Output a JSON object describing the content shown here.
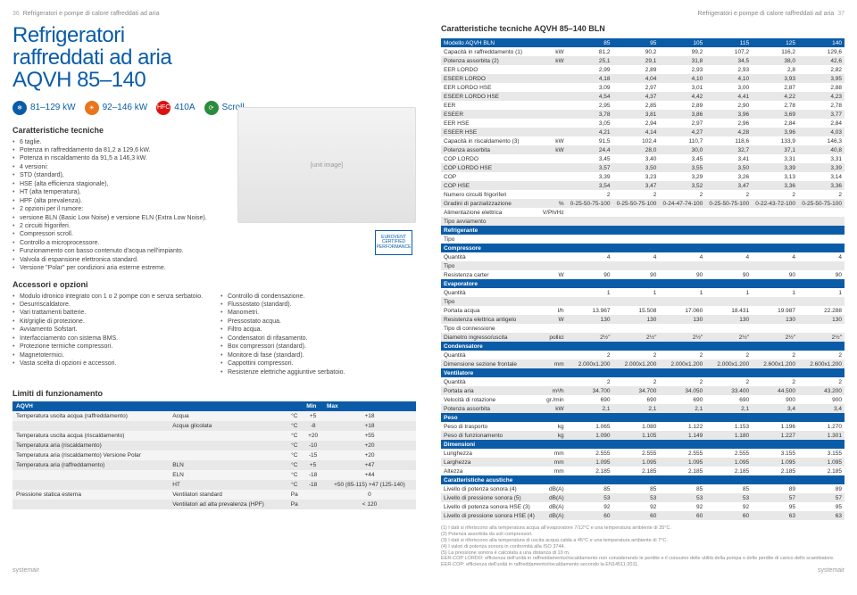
{
  "header": {
    "left_text": "Refrigeratori e pompe di calore raffreddati ad aria",
    "left_pn": "36",
    "right_text": "Refrigeratori e pompe di calore raffreddati ad aria",
    "right_pn": "37"
  },
  "title": {
    "l1": "Refrigeratori",
    "l2": "raffreddati ad aria",
    "l3": "AQVH 85–140"
  },
  "badges": {
    "cooling": "81–129 kW",
    "heating": "92–146 kW",
    "refrig": "410A",
    "comp": "Scroll"
  },
  "caratteristiche_h": "Caratteristiche tecniche",
  "caratteristiche": [
    "6 taglie.",
    "Potenza in raffreddamento da 81,2 a 129,6 kW.",
    "Potenza in riscaldamento da 91,5 a 146,3 kW.",
    "4 versioni:",
    "STD (standard),",
    "HSE (alta efficienza stagionale),",
    "HT (alta temperatura),",
    "HPF (alta prevalenza).",
    "2 opzioni per il rumore:",
    "versione BLN (Basic Low Noise) e versione ELN (Extra Low Noise).",
    "2 circuiti frigoriferi.",
    "Compressori scroll.",
    "Controllo a microprocessore.",
    "Funzionamento con basso contenuto d'acqua nell'impianto.",
    "Valvola di espansione elettronica standard.",
    "Versione \"Polar\" per condizioni aria esterne estreme."
  ],
  "accessori_h": "Accessori e opzioni",
  "accessori_col1": [
    "Modulo idronico integrato con 1 o 2 pompe con e senza serbatoio.",
    "Desurriscaldatore.",
    "Vari trattamenti batterie.",
    "Kit/griglie di protezione.",
    "Avviamento Sofstart.",
    "Interfacciamento con sistema BMS.",
    "Protezione termiche compressori.",
    "Magnetotermici.",
    "Vasta scelta di opzioni e accessori."
  ],
  "accessori_col2": [
    "Controllo di condensazione.",
    "Flussostato (standard).",
    "Manometri.",
    "Pressostato acqua.",
    "Filtro acqua.",
    "Condensatori di rifasamento.",
    "Box compressori (standard).",
    "Monitore di fase (standard).",
    "Cappottini compressori.",
    "Resistenze elettriche aggiuntive serbatoio."
  ],
  "limiti_h": "Limiti di funzionamento",
  "limit_table": {
    "head": [
      "AQVH",
      "",
      "",
      "Min",
      "Max"
    ],
    "rows": [
      [
        "Temperatura uscita acqua (raffreddamento)",
        "Acqua",
        "°C",
        "+5",
        "+18"
      ],
      [
        "",
        "Acqua glicolata",
        "°C",
        "-8",
        "+18"
      ],
      [
        "Temperatura uscita acqua (riscaldamento)",
        "",
        "°C",
        "+20",
        "+55"
      ],
      [
        "Temperatura aria (riscaldamento)",
        "",
        "°C",
        "-10",
        "+20"
      ],
      [
        "Temperatura aria (riscaldamento) Versione Polar",
        "",
        "°C",
        "-15",
        "+20"
      ],
      [
        "Temperatura aria (raffreddamento)",
        "BLN",
        "°C",
        "+5",
        "+47"
      ],
      [
        "",
        "ELN",
        "°C",
        "-18",
        "+44"
      ],
      [
        "",
        "HT",
        "°C",
        "-18",
        "+50 (85-115)\n+47 (125-140)"
      ],
      [
        "Pressione statica esterna",
        "Ventilatori standard",
        "Pa",
        "",
        "0"
      ],
      [
        "",
        "Ventilatori ad alta prevalenza (HPF)",
        "Pa",
        "",
        "< 120"
      ]
    ]
  },
  "right_heading": "Caratteristiche tecniche AQVH 85–140 BLN",
  "spec": {
    "models": [
      "85",
      "95",
      "105",
      "115",
      "125",
      "140"
    ],
    "model_label": "Modello AQVH BLN",
    "rows": [
      {
        "l": "Capacità in raffreddamento (1)",
        "u": "kW",
        "v": [
          "81,2",
          "90,2",
          "99,2",
          "107,2",
          "116,2",
          "129,6"
        ],
        "g": 0
      },
      {
        "l": "Potenza assorbita (2)",
        "u": "kW",
        "v": [
          "25,1",
          "29,1",
          "31,8",
          "34,5",
          "38,0",
          "42,6"
        ],
        "g": 1
      },
      {
        "l": "EER LORDO",
        "u": "",
        "v": [
          "2,99",
          "2,89",
          "2,93",
          "2,93",
          "2,8",
          "2,82"
        ],
        "g": 0
      },
      {
        "l": "ESEER LORDO",
        "u": "",
        "v": [
          "4,18",
          "4,04",
          "4,10",
          "4,10",
          "3,93",
          "3,95"
        ],
        "g": 1
      },
      {
        "l": "EER LORDO HSE",
        "u": "",
        "v": [
          "3,09",
          "2,97",
          "3,01",
          "3,00",
          "2,87",
          "2,88"
        ],
        "g": 0
      },
      {
        "l": "ESEER LORDO HSE",
        "u": "",
        "v": [
          "4,54",
          "4,37",
          "4,42",
          "4,41",
          "4,22",
          "4,23"
        ],
        "g": 1
      },
      {
        "l": "EER",
        "u": "",
        "v": [
          "2,95",
          "2,85",
          "2,89",
          "2,90",
          "2,78",
          "2,78"
        ],
        "g": 0
      },
      {
        "l": "ESEER",
        "u": "",
        "v": [
          "3,78",
          "3,81",
          "3,86",
          "3,96",
          "3,69",
          "3,77"
        ],
        "g": 1
      },
      {
        "l": "EER HSE",
        "u": "",
        "v": [
          "3,05",
          "2,94",
          "2,97",
          "2,96",
          "2,84",
          "2,84"
        ],
        "g": 0
      },
      {
        "l": "ESEER HSE",
        "u": "",
        "v": [
          "4,21",
          "4,14",
          "4,27",
          "4,28",
          "3,96",
          "4,03"
        ],
        "g": 1
      },
      {
        "l": "Capacità in riscaldamento (3)",
        "u": "kW",
        "v": [
          "91,5",
          "102,4",
          "110,7",
          "118,6",
          "133,9",
          "146,3"
        ],
        "g": 0
      },
      {
        "l": "Potenza assorbita",
        "u": "kW",
        "v": [
          "24,4",
          "28,0",
          "30,0",
          "32,7",
          "37,1",
          "40,8"
        ],
        "g": 1
      },
      {
        "l": "COP LORDO",
        "u": "",
        "v": [
          "3,45",
          "3,40",
          "3,45",
          "3,41",
          "3,31",
          "3,31"
        ],
        "g": 0
      },
      {
        "l": "COP LORDO HSE",
        "u": "",
        "v": [
          "3,57",
          "3,50",
          "3,55",
          "3,50",
          "3,39",
          "3,39"
        ],
        "g": 1
      },
      {
        "l": "COP",
        "u": "",
        "v": [
          "3,39",
          "3,23",
          "3,29",
          "3,26",
          "3,13",
          "3,14"
        ],
        "g": 0
      },
      {
        "l": "COP HSE",
        "u": "",
        "v": [
          "3,54",
          "3,47",
          "3,52",
          "3,47",
          "3,36",
          "3,36"
        ],
        "g": 1
      },
      {
        "l": "Numero circuiti frigoriferi",
        "u": "",
        "v": [
          "2",
          "2",
          "2",
          "2",
          "2",
          "2"
        ],
        "g": 0
      },
      {
        "l": "Gradini di parzializzazione",
        "u": "%",
        "v": [
          "0-25-50-75-100",
          "0-25-50-75-100",
          "0-24-47-74-100",
          "0-25-50-75-100",
          "0-22-43-72-100",
          "0-25-50-75-100"
        ],
        "g": 1
      },
      {
        "l": "Alimentazione elettrica",
        "u": "V/Ph/Hz",
        "v": [
          "",
          "",
          "400/3/50",
          "",
          "",
          ""
        ],
        "span": 6,
        "g": 0
      },
      {
        "l": "Tipo avviamento",
        "u": "",
        "v": [
          "",
          "",
          "Diretto",
          "",
          "",
          ""
        ],
        "span": 6,
        "g": 1
      }
    ],
    "sections": [
      {
        "h": "Refrigerante",
        "rows": [
          {
            "l": "Tipo",
            "u": "",
            "v": [
              "",
              "",
              "HFC 410A",
              "",
              "",
              ""
            ],
            "span": 6,
            "g": 0
          }
        ]
      },
      {
        "h": "Compressore",
        "rows": [
          {
            "l": "Quantità",
            "u": "",
            "v": [
              "4",
              "4",
              "4",
              "4",
              "4",
              "4"
            ],
            "g": 0
          },
          {
            "l": "Tipo",
            "u": "",
            "v": [
              "",
              "",
              "Scroll",
              "",
              "",
              ""
            ],
            "span": 6,
            "g": 1
          },
          {
            "l": "Resistenza carter",
            "u": "W",
            "v": [
              "90",
              "90",
              "90",
              "90",
              "90",
              "90"
            ],
            "g": 0
          }
        ]
      },
      {
        "h": "Evaporatore",
        "rows": [
          {
            "l": "Quantità",
            "u": "",
            "v": [
              "1",
              "1",
              "1",
              "1",
              "1",
              "1"
            ],
            "g": 0
          },
          {
            "l": "Tipo",
            "u": "",
            "v": [
              "",
              "",
              "A piastre AISI 316",
              "",
              "",
              ""
            ],
            "span": 6,
            "g": 1
          },
          {
            "l": "Portata acqua",
            "u": "l/h",
            "v": [
              "13.967",
              "15.508",
              "17.060",
              "18.431",
              "19.987",
              "22.288"
            ],
            "g": 0
          },
          {
            "l": "Resistenza elettrica antigelo",
            "u": "W",
            "v": [
              "130",
              "130",
              "130",
              "130",
              "130",
              "130"
            ],
            "g": 1
          },
          {
            "l": "Tipo di connessione",
            "u": "",
            "v": [
              "",
              "",
              "Filettato maschio",
              "",
              "",
              ""
            ],
            "span": 6,
            "g": 0
          },
          {
            "l": "Diametro ingresso/uscita",
            "u": "pollici",
            "v": [
              "2½\"",
              "2½\"",
              "2½\"",
              "2½\"",
              "2½\"",
              "2½\""
            ],
            "g": 1
          }
        ]
      },
      {
        "h": "Condensatore",
        "rows": [
          {
            "l": "Quantità",
            "u": "",
            "v": [
              "2",
              "2",
              "2",
              "2",
              "2",
              "2"
            ],
            "g": 0
          },
          {
            "l": "Dimensione sezione frontale",
            "u": "mm",
            "v": [
              "2.000x1.200",
              "2.000x1.200",
              "2.000x1.200",
              "2.000x1.200",
              "2.600x1.200",
              "2.600x1.200"
            ],
            "g": 1
          }
        ]
      },
      {
        "h": "Ventilatore",
        "rows": [
          {
            "l": "Quantità",
            "u": "",
            "v": [
              "2",
              "2",
              "2",
              "2",
              "2",
              "2"
            ],
            "g": 0
          },
          {
            "l": "Portata aria",
            "u": "m³/h",
            "v": [
              "34.700",
              "34.700",
              "34.050",
              "33.400",
              "44.500",
              "43.200"
            ],
            "g": 1
          },
          {
            "l": "Velocità di rotazione",
            "u": "gr./min",
            "v": [
              "690",
              "690",
              "690",
              "690",
              "900",
              "900"
            ],
            "g": 0
          },
          {
            "l": "Potenza assorbita",
            "u": "kW",
            "v": [
              "2,1",
              "2,1",
              "2,1",
              "2,1",
              "3,4",
              "3,4"
            ],
            "g": 1
          }
        ]
      },
      {
        "h": "Peso",
        "rows": [
          {
            "l": "Peso di trasporto",
            "u": "kg",
            "v": [
              "1.065",
              "1.080",
              "1.122",
              "1.153",
              "1.196",
              "1.270"
            ],
            "g": 0
          },
          {
            "l": "Peso di funzionamento",
            "u": "kg",
            "v": [
              "1.090",
              "1.105",
              "1.149",
              "1.180",
              "1.227",
              "1.301"
            ],
            "g": 1
          }
        ]
      },
      {
        "h": "Dimensioni",
        "rows": [
          {
            "l": "Lunghezza",
            "u": "mm",
            "v": [
              "2.555",
              "2.555",
              "2.555",
              "2.555",
              "3.155",
              "3.155"
            ],
            "g": 0
          },
          {
            "l": "Larghezza",
            "u": "mm",
            "v": [
              "1.095",
              "1.095",
              "1.095",
              "1.095",
              "1.095",
              "1.095"
            ],
            "g": 1
          },
          {
            "l": "Altezza",
            "u": "mm",
            "v": [
              "2.185",
              "2.185",
              "2.185",
              "2.185",
              "2.185",
              "2.185"
            ],
            "g": 0
          }
        ]
      },
      {
        "h": "Caratteristiche acustiche",
        "rows": [
          {
            "l": "Livello di potenza sonora (4)",
            "u": "dB(A)",
            "v": [
              "85",
              "85",
              "85",
              "85",
              "89",
              "89"
            ],
            "g": 0
          },
          {
            "l": "Livello di pressione sonora (5)",
            "u": "dB(A)",
            "v": [
              "53",
              "53",
              "53",
              "53",
              "57",
              "57"
            ],
            "g": 1
          },
          {
            "l": "Livello di potenza sonora HSE (3)",
            "u": "dB(A)",
            "v": [
              "92",
              "92",
              "92",
              "92",
              "95",
              "95"
            ],
            "g": 0
          },
          {
            "l": "Livello di pressione sonora HSE (4)",
            "u": "dB(A)",
            "v": [
              "60",
              "60",
              "60",
              "60",
              "63",
              "63"
            ],
            "g": 1
          }
        ]
      }
    ]
  },
  "footnotes": [
    "(1) I dati si riferiscono alla temperatura acqua all'evaporatore 7/12°C e una temperatura ambiente di 35°C.",
    "(2) Potenza assorbita da soli compressori.",
    "(3) I dati si riferiscono alla temperatura di uscita acqua calda a 45°C e una temperatura ambiente di 7°C.",
    "(4) I valori di potenza sonora in conformità alla ISO 3744.",
    "(5) La pressione sonora è calcolata a una distanza di 10 m.",
    "EER-COP LORDO: efficienza dell'unità in raffreddamento/riscaldamento non considerando le perdite e il consumo delle utilità della pompa o delle perdite di carico dello scambiatore.",
    "EER-COP: efficienza dell'unità in raffreddamento/riscaldamento secondo la EN14511:2011."
  ],
  "footer_brand": "systemair"
}
